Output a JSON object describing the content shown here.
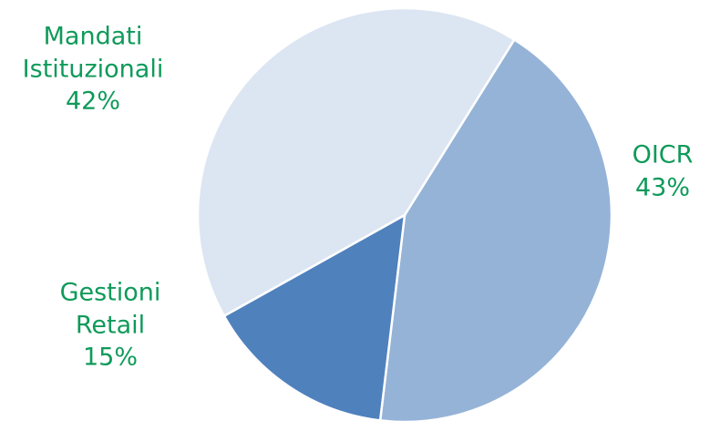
{
  "chart_data": {
    "type": "pie",
    "start_angle_deg": 32,
    "direction": "clockwise",
    "label_color": "#0f9a5a",
    "slices": [
      {
        "name_lines": [
          "OICR"
        ],
        "pct_label": "43%",
        "value": 43,
        "color": "#95b3d7"
      },
      {
        "name_lines": [
          "Gestioni",
          "Retail"
        ],
        "pct_label": "15%",
        "value": 15,
        "color": "#4f81bd"
      },
      {
        "name_lines": [
          "Mandati",
          "Istituzionali"
        ],
        "pct_label": "42%",
        "value": 42,
        "color": "#dce6f2"
      }
    ]
  }
}
